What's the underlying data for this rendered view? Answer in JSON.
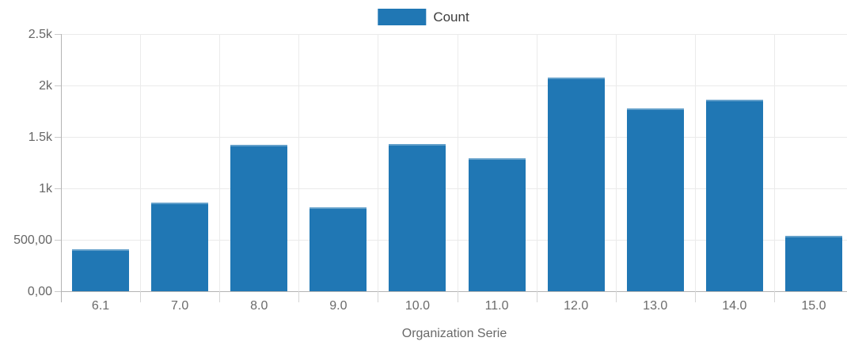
{
  "chart_data": {
    "type": "bar",
    "title": "",
    "xlabel": "Organization Serie",
    "ylabel": "",
    "categories": [
      "6.1",
      "7.0",
      "8.0",
      "9.0",
      "10.0",
      "11.0",
      "12.0",
      "13.0",
      "14.0",
      "15.0"
    ],
    "series": [
      {
        "name": "Count",
        "values": [
          410,
          865,
          1420,
          815,
          1430,
          1290,
          2080,
          1780,
          1860,
          540
        ]
      }
    ],
    "ylim": [
      0,
      2500
    ],
    "ytick_values": [
      0,
      500,
      1000,
      1500,
      2000,
      2500
    ],
    "ytick_labels": [
      "0,00",
      "500,00",
      "1k",
      "1.5k",
      "2k",
      "2.5k"
    ],
    "grid": true,
    "legend_position": "top-center",
    "legend": [
      {
        "label": "Count",
        "color": "#2077b4"
      }
    ],
    "colors": {
      "bar": "#2077b4",
      "grid": "#ebebeb",
      "axis": "#b3b3b3",
      "tick_text": "#666666",
      "axis_title_text": "#696969",
      "legend_text": "#3d3d3d"
    }
  }
}
